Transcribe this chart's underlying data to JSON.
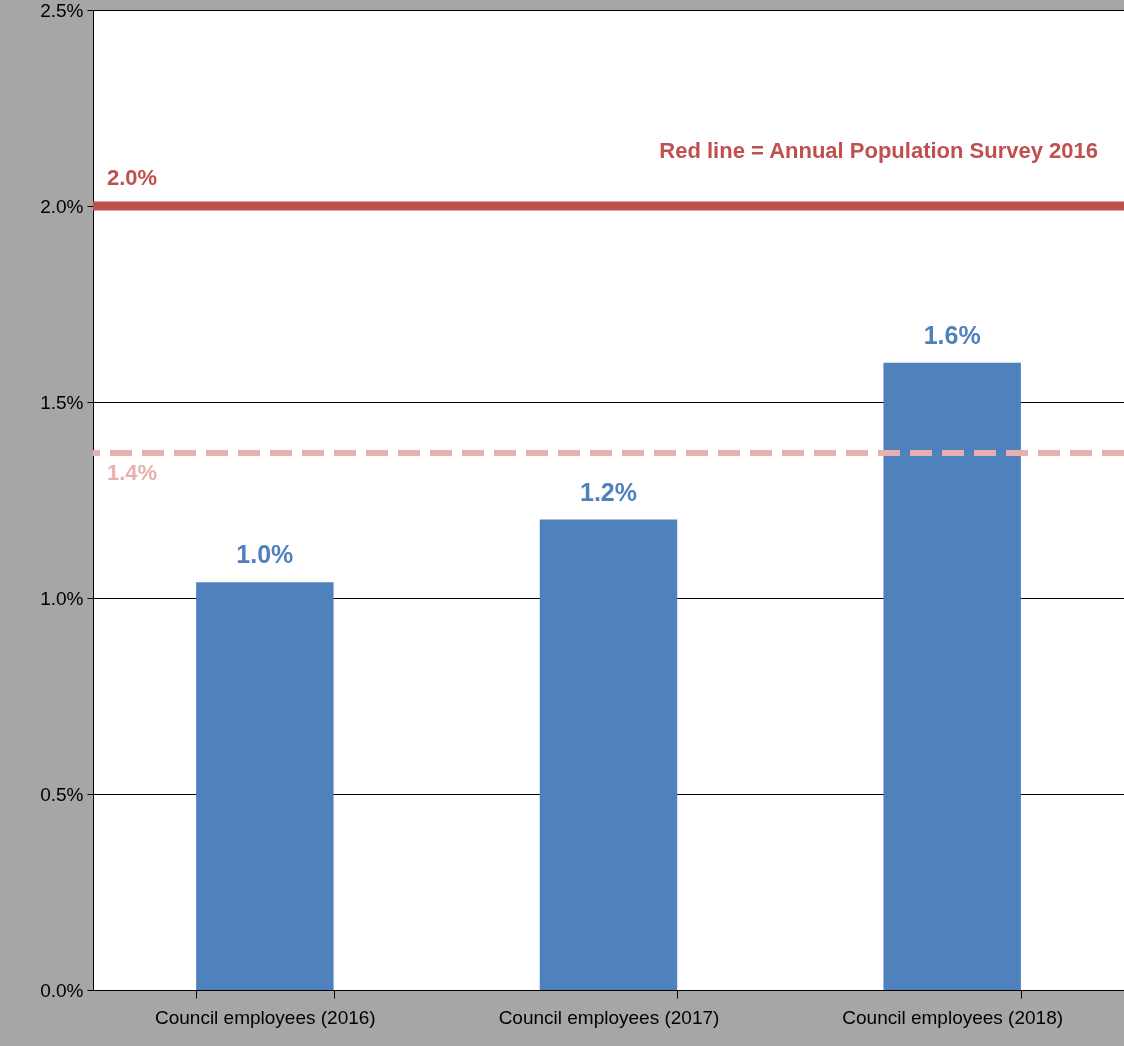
{
  "chart_data": {
    "type": "bar",
    "categories": [
      "Council employees (2016)",
      "Council employees (2017)",
      "Council employees (2018)"
    ],
    "values": [
      1.04,
      1.2,
      1.6
    ],
    "value_labels": [
      "1.0%",
      "1.2%",
      "1.6%"
    ],
    "color": "#4f81bd",
    "ylim": [
      0,
      2.5
    ],
    "yticks": [
      {
        "value": 0,
        "label": "0.0%"
      },
      {
        "value": 0.5,
        "label": "0.5%"
      },
      {
        "value": 1,
        "label": "1.0%"
      },
      {
        "value": 1.5,
        "label": "1.5%"
      },
      {
        "value": 2,
        "label": "2.0%"
      },
      {
        "value": 2.5,
        "label": "2.5%"
      }
    ],
    "grid": "y",
    "ref_lines": [
      {
        "axis": "y",
        "value": 2.0,
        "label": "2.0%",
        "color": "#c0504d",
        "line_style": "solid"
      },
      {
        "axis": "y",
        "value": 1.37,
        "label": "1.4%",
        "color": "#e6b0ae",
        "line_style": "dashed"
      }
    ],
    "annotations": [
      "Red line = Annual Population Survey 2016"
    ]
  }
}
